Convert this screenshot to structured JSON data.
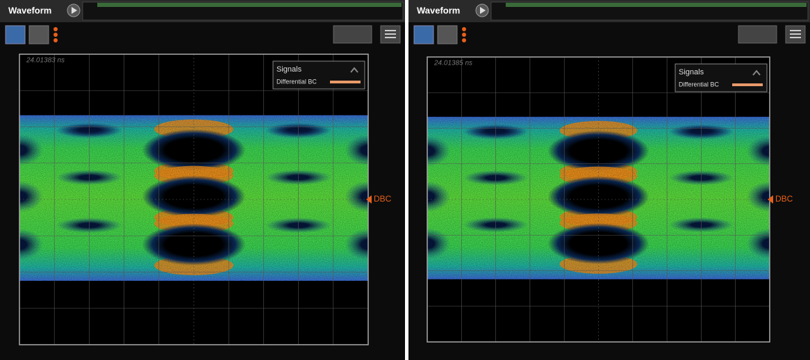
{
  "panels": [
    {
      "title": "Waveform",
      "timestamp": "24.01383 ns",
      "legend": {
        "title": "Signals",
        "entries": [
          "Differential BC"
        ]
      },
      "marker": "DBC"
    },
    {
      "title": "Waveform",
      "timestamp": "24.01385 ns",
      "legend": {
        "title": "Signals",
        "entries": [
          "Differential BC"
        ]
      },
      "marker": "DBC"
    }
  ]
}
